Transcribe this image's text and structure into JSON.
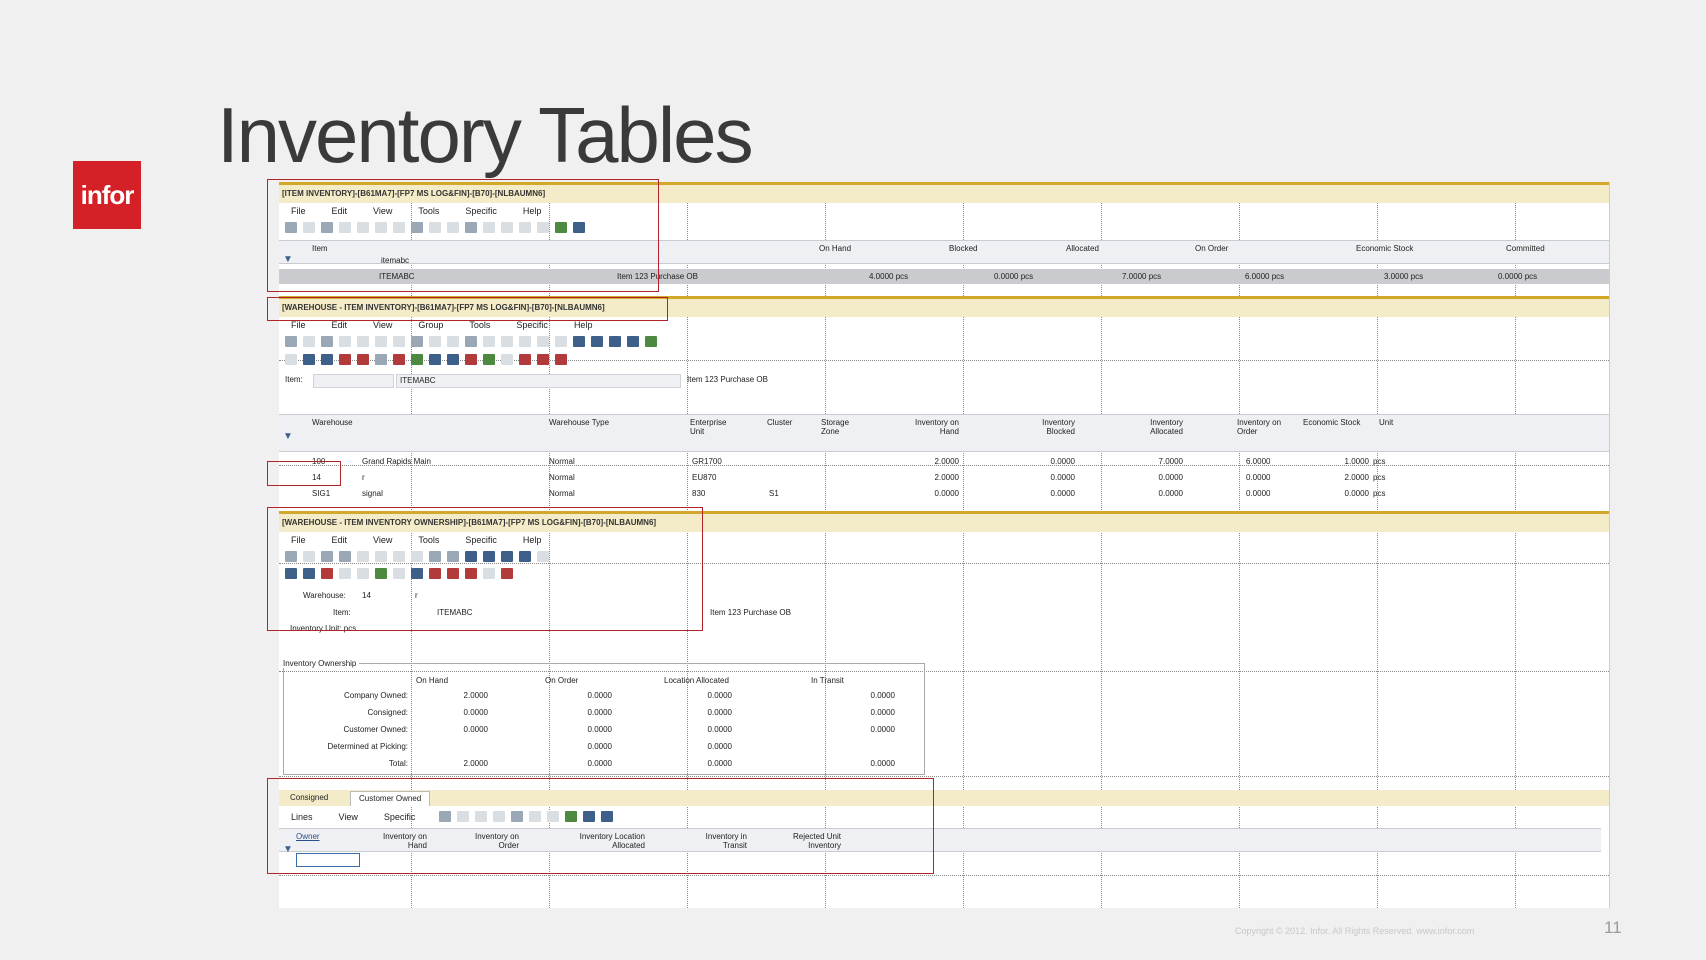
{
  "slide": {
    "title": "Inventory Tables",
    "logo_text": "infor",
    "footer": "Copyright © 2012. Infor. All Rights Reserved. www.infor.com",
    "page_number": "11"
  },
  "item_inventory": {
    "window_title": "[ITEM INVENTORY]-[B61MA7]-[FP7 MS LOG&FIN]-[B70]-[NLBAUMN6]",
    "menu": [
      "File",
      "Edit",
      "View",
      "Tools",
      "Specific",
      "Help"
    ],
    "headers": [
      "Item",
      "On Hand",
      "Blocked",
      "Allocated",
      "On Order",
      "Economic Stock",
      "Committed"
    ],
    "filter_value": "itemabc",
    "row": {
      "item": "ITEMABC",
      "desc": "Item 123 Purchase OB",
      "on_hand": "4.0000 pcs",
      "blocked": "0.0000 pcs",
      "allocated": "7.0000 pcs",
      "on_order": "6.0000 pcs",
      "economic": "3.0000 pcs",
      "committed": "0.0000 pcs"
    }
  },
  "warehouse_inventory": {
    "window_title": "[WAREHOUSE - ITEM INVENTORY]-[B61MA7]-[FP7 MS LOG&FIN]-[B70]-[NLBAUMN6]",
    "menu": [
      "File",
      "Edit",
      "View",
      "Group",
      "Tools",
      "Specific",
      "Help"
    ],
    "item_label": "Item:",
    "item_value": "ITEMABC",
    "item_desc": "Item 123 Purchase OB",
    "headers": [
      "Warehouse",
      "Warehouse Type",
      "Enterprise Unit",
      "Cluster",
      "Storage Zone",
      "Inventory on Hand",
      "Inventory Blocked",
      "Inventory Allocated",
      "Inventory on Order",
      "Economic Stock",
      "Unit"
    ],
    "rows": [
      {
        "wh": "100",
        "name": "Grand Rapids Main",
        "type": "Normal",
        "eu": "GR1700",
        "cluster": "",
        "on_hand": "2.0000",
        "blocked": "0.0000",
        "allocated": "7.0000",
        "on_order": "6.0000",
        "economic": "1.0000",
        "unit": "pcs"
      },
      {
        "wh": "14",
        "name": "r",
        "type": "Normal",
        "eu": "EU870",
        "cluster": "",
        "on_hand": "2.0000",
        "blocked": "0.0000",
        "allocated": "0.0000",
        "on_order": "0.0000",
        "economic": "2.0000",
        "unit": "pcs"
      },
      {
        "wh": "SIG1",
        "name": "signal",
        "type": "Normal",
        "eu": "830",
        "cluster": "S1",
        "on_hand": "0.0000",
        "blocked": "0.0000",
        "allocated": "0.0000",
        "on_order": "0.0000",
        "economic": "0.0000",
        "unit": "pcs"
      }
    ]
  },
  "ownership": {
    "window_title": "[WAREHOUSE - ITEM INVENTORY OWNERSHIP]-[B61MA7]-[FP7 MS LOG&FIN]-[B70]-[NLBAUMN6]",
    "menu": [
      "File",
      "Edit",
      "View",
      "Tools",
      "Specific",
      "Help"
    ],
    "warehouse_label": "Warehouse:",
    "warehouse_value": "14",
    "warehouse_name": "r",
    "item_label": "Item:",
    "item_value": "ITEMABC",
    "item_desc": "Item 123 Purchase OB",
    "unit_label": "Inventory Unit: pcs",
    "group_title": "Inventory Ownership",
    "col_headers": [
      "On Hand",
      "On Order",
      "Location Allocated",
      "In Transit"
    ],
    "rows": [
      {
        "label": "Company Owned:",
        "vals": [
          "2.0000",
          "0.0000",
          "0.0000",
          "0.0000"
        ]
      },
      {
        "label": "Consigned:",
        "vals": [
          "0.0000",
          "0.0000",
          "0.0000",
          "0.0000"
        ]
      },
      {
        "label": "Customer Owned:",
        "vals": [
          "0.0000",
          "0.0000",
          "0.0000",
          "0.0000"
        ]
      },
      {
        "label": "Determined at Picking:",
        "vals": [
          "",
          "0.0000",
          "0.0000",
          ""
        ]
      },
      {
        "label": "Total:",
        "vals": [
          "2.0000",
          "0.0000",
          "0.0000",
          "0.0000"
        ]
      }
    ],
    "tabs": [
      "Consigned",
      "Customer Owned"
    ],
    "sub_menu": [
      "Lines",
      "View",
      "Specific"
    ],
    "sub_headers": [
      "Owner",
      "Inventory on Hand",
      "Inventory on Order",
      "Inventory Location Allocated",
      "Inventory in Transit",
      "Rejected Unit Inventory"
    ]
  }
}
